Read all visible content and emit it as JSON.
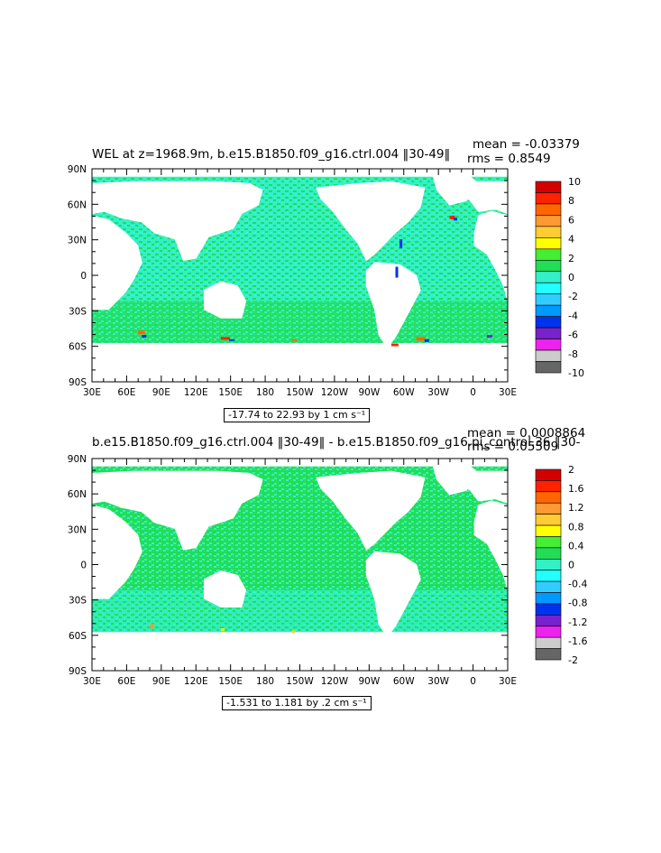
{
  "colors": {
    "ocean_main": "#33f0c8",
    "ocean_alt": "#22dd55",
    "land": "#ffffff",
    "frame": "#000000"
  },
  "panels": [
    {
      "title": "WEL at z=1968.9m, b.e15.B1850.f09_g16.ctrl.004 ‖30-49‖",
      "mean_text": "mean = -0.03379",
      "rms_text": "rms = 0.8549",
      "range_text": "-17.74 to 22.93 by 1 cm s⁻¹",
      "colorbar_labels": [
        "10",
        "8",
        "6",
        "4",
        "2",
        "0",
        "-2",
        "-4",
        "-6",
        "-8",
        "-10"
      ],
      "colorbar_colors": [
        "#d40000",
        "#ff2200",
        "#ff6600",
        "#ff9933",
        "#ffcc33",
        "#ffff00",
        "#44ee33",
        "#22dd55",
        "#33f0c8",
        "#22ffff",
        "#33ccff",
        "#0099ff",
        "#0033ee",
        "#7722cc",
        "#ee22ee",
        "#cccccc",
        "#666666"
      ]
    },
    {
      "title": "b.e15.B1850.f09_g16.ctrl.004 ‖30-49‖ - b.e15.B1850.f09_g16.pi_control.36 ‖30-",
      "mean_text": "mean = 0.0008864",
      "rms_text": "rms = 0.05509",
      "range_text": "-1.531 to 1.181 by .2 cm s⁻¹",
      "colorbar_labels": [
        "2",
        "1.6",
        "1.2",
        "0.8",
        "0.4",
        "0",
        "-0.4",
        "-0.8",
        "-1.2",
        "-1.6",
        "-2"
      ],
      "colorbar_colors": [
        "#d40000",
        "#ff2200",
        "#ff6600",
        "#ff9933",
        "#ffcc33",
        "#ffff00",
        "#44ee33",
        "#22dd55",
        "#33f0c8",
        "#22ffff",
        "#33ccff",
        "#0099ff",
        "#0033ee",
        "#7722cc",
        "#ee22ee",
        "#cccccc",
        "#666666"
      ]
    }
  ],
  "chart_data": [
    {
      "type": "heatmap",
      "title": "WEL at z=1968.9m, b.e15.B1850.f09_g16.ctrl.004 ‖30-49‖",
      "x_tick_labels": [
        "30E",
        "60E",
        "90E",
        "120E",
        "150E",
        "180",
        "150W",
        "120W",
        "90W",
        "60W",
        "30W",
        "0",
        "30E"
      ],
      "y_tick_labels": [
        "90N",
        "60N",
        "30N",
        "0",
        "30S",
        "60S",
        "90S"
      ],
      "xlim": [
        "30E",
        "30E"
      ],
      "ylim": [
        "90S",
        "90N"
      ],
      "units": "cm s⁻¹",
      "mean": -0.03379,
      "rms": 0.8549,
      "data_min": -17.74,
      "data_max": 22.93,
      "contour_interval": 1,
      "colorbar_range": [
        -10,
        10
      ]
    },
    {
      "type": "heatmap",
      "title": "b.e15.B1850.f09_g16.ctrl.004 ‖30-49‖ - b.e15.B1850.f09_g16.pi_control.36 ‖30-",
      "x_tick_labels": [
        "30E",
        "60E",
        "90E",
        "120E",
        "150E",
        "180",
        "150W",
        "120W",
        "90W",
        "60W",
        "30W",
        "0",
        "30E"
      ],
      "y_tick_labels": [
        "90N",
        "60N",
        "30N",
        "0",
        "30S",
        "60S",
        "90S"
      ],
      "xlim": [
        "30E",
        "30E"
      ],
      "ylim": [
        "90S",
        "90N"
      ],
      "units": "cm s⁻¹",
      "mean": 0.0008864,
      "rms": 0.05509,
      "data_min": -1.531,
      "data_max": 1.181,
      "contour_interval": 0.2,
      "colorbar_range": [
        -2,
        2
      ]
    }
  ]
}
